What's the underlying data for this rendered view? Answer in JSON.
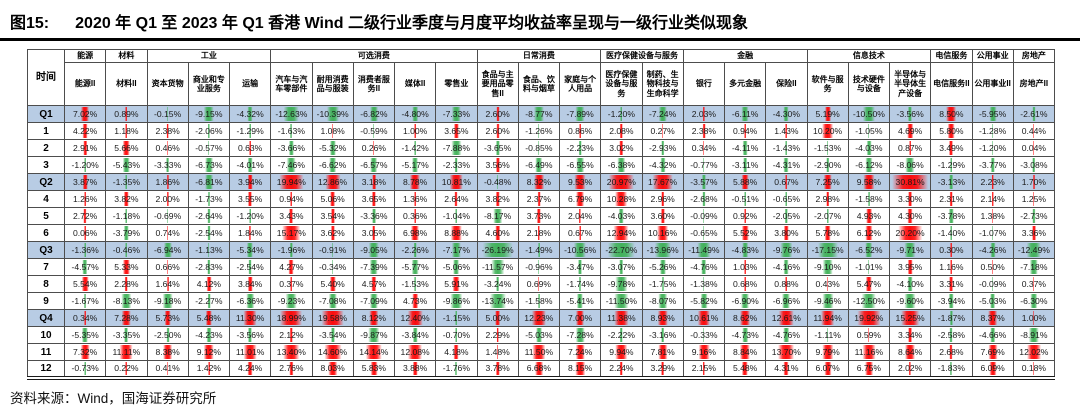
{
  "page": {
    "title_label": "图15:",
    "title_text": "2020 年 Q1 至 2023 年 Q1 香港 Wind 二级行业季度与月度平均收益率呈现与一级行业类似现象",
    "source_text": "资料来源：Wind，国海证券研究所"
  },
  "colors": {
    "positive_bar": "#ff0000",
    "negative_bar": "#3cb054",
    "quarter_row_bg": "#b8cce4"
  },
  "chart_data": {
    "type": "table",
    "title": "2020 年 Q1 至 2023 年 Q1 香港 Wind 二级行业季度与月度平均收益率",
    "unit": "%",
    "time_header": "时间",
    "column_groups": [
      {
        "label": "能源",
        "span": 1
      },
      {
        "label": "材料",
        "span": 1
      },
      {
        "label": "工业",
        "span": 3
      },
      {
        "label": "可选消费",
        "span": 5
      },
      {
        "label": "日常消费",
        "span": 3
      },
      {
        "label": "医疗保健设备与服务",
        "span": 2
      },
      {
        "label": "金融",
        "span": 3
      },
      {
        "label": "信息技术",
        "span": 3
      },
      {
        "label": "电信服务",
        "span": 1
      },
      {
        "label": "公用事业",
        "span": 1
      },
      {
        "label": "房地产",
        "span": 1
      }
    ],
    "columns": [
      "能源II",
      "材料II",
      "资本货物",
      "商业和专业服务",
      "运输",
      "汽车与汽车零部件",
      "耐用消费品与服装",
      "消费者服务II",
      "媒体II",
      "零售业",
      "食品与主要用品零售II",
      "食品、饮料与烟草",
      "家庭与个人用品",
      "医疗保健设备与服务",
      "制药、生物科技与生命科学",
      "银行",
      "多元金融",
      "保险II",
      "软件与服务",
      "技术硬件与设备",
      "半导体与半导体生产设备",
      "电信服务II",
      "公用事业II",
      "房地产II"
    ],
    "rows": [
      {
        "label": "Q1",
        "is_quarter": true,
        "values": [
          7.02,
          0.89,
          -0.15,
          -9.15,
          -4.32,
          -12.63,
          -10.39,
          -6.82,
          -4.8,
          -7.33,
          2.6,
          -8.77,
          -7.89,
          -1.2,
          -7.24,
          2.03,
          -6.11,
          -4.3,
          5.19,
          -10.5,
          -3.56,
          8.5,
          -5.95,
          -2.61
        ]
      },
      {
        "label": "1",
        "is_quarter": false,
        "values": [
          4.22,
          1.18,
          2.38,
          -2.06,
          -1.29,
          -1.63,
          1.08,
          -0.59,
          1.0,
          3.65,
          2.6,
          -1.26,
          0.86,
          2.08,
          0.27,
          2.38,
          0.94,
          1.43,
          10.2,
          -1.05,
          4.69,
          5.8,
          -1.28,
          0.44
        ]
      },
      {
        "label": "2",
        "is_quarter": false,
        "values": [
          2.91,
          5.66,
          0.46,
          -0.57,
          0.63,
          -3.66,
          -5.32,
          0.26,
          -1.42,
          -7.88,
          -3.65,
          -0.85,
          -2.23,
          3.02,
          -2.93,
          0.34,
          -4.11,
          -1.43,
          -1.53,
          -4.03,
          0.87,
          3.49,
          -1.2,
          0.04
        ]
      },
      {
        "label": "3",
        "is_quarter": false,
        "values": [
          -1.2,
          -5.43,
          -3.33,
          -6.73,
          -4.01,
          -7.46,
          -6.62,
          -6.57,
          -5.17,
          -2.33,
          3.56,
          -6.49,
          -6.55,
          -6.38,
          -4.32,
          -0.77,
          -3.11,
          -4.31,
          -2.9,
          -6.12,
          -8.06,
          -1.29,
          -3.77,
          -3.08
        ]
      },
      {
        "label": "Q2",
        "is_quarter": true,
        "values": [
          3.87,
          -1.35,
          1.86,
          -6.81,
          3.94,
          19.94,
          12.86,
          3.18,
          8.78,
          10.81,
          -0.48,
          8.32,
          9.53,
          20.97,
          17.67,
          -3.57,
          5.88,
          0.67,
          7.25,
          9.58,
          30.81,
          -3.13,
          2.23,
          1.7
        ]
      },
      {
        "label": "4",
        "is_quarter": false,
        "values": [
          1.26,
          3.82,
          2.0,
          -1.73,
          3.55,
          0.94,
          5.06,
          3.65,
          1.36,
          2.64,
          3.82,
          2.37,
          6.79,
          10.28,
          2.96,
          -2.68,
          -0.51,
          -0.65,
          2.98,
          -1.58,
          3.3,
          2.31,
          2.14,
          1.25
        ]
      },
      {
        "label": "5",
        "is_quarter": false,
        "values": [
          2.72,
          -1.18,
          -0.69,
          -2.64,
          -1.2,
          3.43,
          3.54,
          -3.36,
          0.36,
          -1.04,
          -8.17,
          3.73,
          2.04,
          -4.03,
          3.6,
          -0.09,
          0.92,
          -2.05,
          -2.07,
          4.93,
          4.3,
          -3.78,
          1.38,
          -2.73
        ]
      },
      {
        "label": "6",
        "is_quarter": false,
        "values": [
          0.06,
          -3.79,
          0.74,
          -2.54,
          1.84,
          15.17,
          3.62,
          3.05,
          6.98,
          8.88,
          4.6,
          2.18,
          0.67,
          12.94,
          10.16,
          -0.65,
          5.52,
          3.8,
          5.78,
          6.12,
          20.2,
          -1.4,
          -1.07,
          3.36
        ]
      },
      {
        "label": "Q3",
        "is_quarter": true,
        "values": [
          -1.36,
          -0.46,
          -6.94,
          -1.13,
          -5.34,
          -1.96,
          -0.91,
          -9.05,
          -2.26,
          -7.17,
          -26.19,
          -1.49,
          -10.56,
          -22.7,
          -13.96,
          -11.49,
          -4.83,
          -9.76,
          -17.15,
          -6.52,
          -9.71,
          0.3,
          -4.26,
          -12.49
        ]
      },
      {
        "label": "7",
        "is_quarter": false,
        "values": [
          -4.57,
          5.33,
          0.66,
          -2.83,
          -2.54,
          4.27,
          -0.34,
          -7.39,
          -5.77,
          -5.06,
          -11.57,
          -0.96,
          -3.47,
          -3.07,
          -5.26,
          -4.76,
          1.03,
          -4.16,
          -9.1,
          -1.01,
          3.95,
          1.16,
          0.5,
          -7.18
        ]
      },
      {
        "label": "8",
        "is_quarter": false,
        "values": [
          5.54,
          2.28,
          1.64,
          4.12,
          3.84,
          0.37,
          5.4,
          4.57,
          -1.53,
          5.91,
          -3.24,
          0.69,
          -1.74,
          -9.78,
          -1.75,
          -1.38,
          0.68,
          0.88,
          0.43,
          5.47,
          -4.1,
          3.31,
          -0.09,
          0.37
        ]
      },
      {
        "label": "9",
        "is_quarter": false,
        "values": [
          -1.67,
          -8.13,
          -9.18,
          -2.27,
          -6.36,
          -9.23,
          -7.08,
          -7.09,
          4.73,
          -9.86,
          -13.74,
          -1.58,
          -5.41,
          -11.5,
          -8.07,
          -5.82,
          -6.9,
          -6.96,
          -9.46,
          -12.5,
          -9.6,
          -3.94,
          -5.03,
          -6.3
        ]
      },
      {
        "label": "Q4",
        "is_quarter": true,
        "values": [
          0.34,
          7.28,
          5.73,
          5.48,
          11.3,
          18.99,
          19.58,
          8.12,
          12.4,
          -1.15,
          5.0,
          12.23,
          7.0,
          11.38,
          8.93,
          10.61,
          8.62,
          12.61,
          11.94,
          19.92,
          15.25,
          -1.87,
          8.37,
          1.0
        ]
      },
      {
        "label": "10",
        "is_quarter": false,
        "values": [
          -5.35,
          -3.35,
          -2.5,
          -4.23,
          -3.56,
          2.12,
          -3.54,
          -9.87,
          -3.84,
          -0.7,
          2.29,
          -5.03,
          -7.28,
          -2.22,
          -3.16,
          -0.33,
          -4.73,
          -4.76,
          -1.11,
          0.59,
          3.34,
          -2.58,
          -4.66,
          -8.91
        ]
      },
      {
        "label": "11",
        "is_quarter": false,
        "values": [
          7.32,
          11.11,
          8.38,
          9.12,
          11.01,
          13.4,
          14.6,
          14.14,
          12.08,
          4.18,
          1.48,
          11.5,
          7.24,
          9.94,
          7.81,
          9.16,
          8.84,
          13.7,
          9.79,
          11.16,
          8.64,
          2.68,
          7.69,
          12.02
        ]
      },
      {
        "label": "12",
        "is_quarter": false,
        "values": [
          -0.73,
          0.22,
          0.41,
          1.42,
          4.24,
          2.76,
          8.03,
          5.83,
          3.88,
          -1.76,
          3.78,
          6.68,
          8.15,
          2.24,
          3.29,
          2.15,
          5.48,
          4.31,
          6.07,
          6.75,
          2.02,
          -1.83,
          6.09,
          0.18
        ]
      }
    ]
  }
}
